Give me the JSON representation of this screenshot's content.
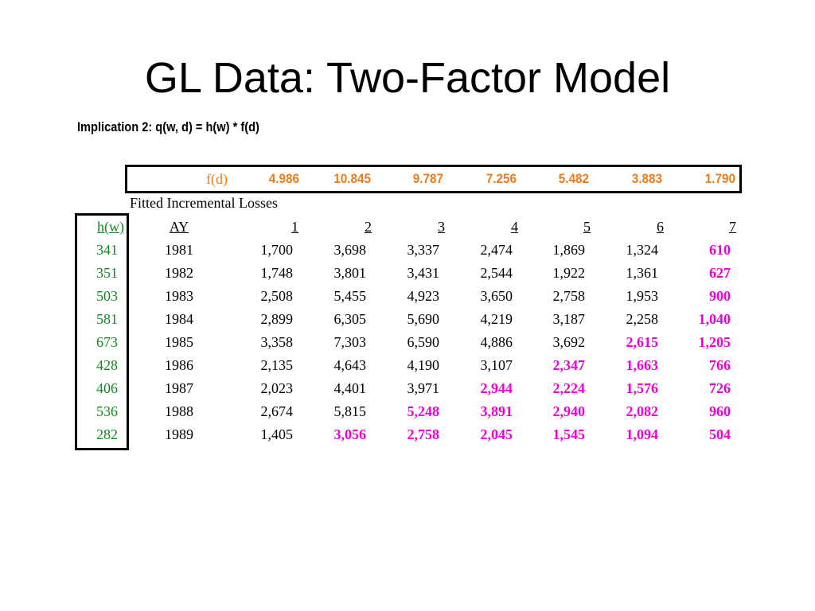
{
  "title": "GL Data: Two-Factor Model",
  "subtitle": "Implication 2:  q(w, d) = h(w) * f(d)",
  "fd": {
    "label": "f(d)",
    "values": [
      "4.986",
      "10.845",
      "9.787",
      "7.256",
      "5.482",
      "3.883",
      "1.790"
    ]
  },
  "caption": "Fitted Incremental Losses",
  "table": {
    "hw_header": "h(w)",
    "ay_header": "AY",
    "dev_headers": [
      "1",
      "2",
      "3",
      "4",
      "5",
      "6",
      "7"
    ],
    "rows": [
      {
        "hw": "341",
        "ay": "1981",
        "cells": [
          "1,700",
          "3,698",
          "3,337",
          "2,474",
          "1,869",
          "1,324",
          "610"
        ],
        "highlight_from": 7
      },
      {
        "hw": "351",
        "ay": "1982",
        "cells": [
          "1,748",
          "3,801",
          "3,431",
          "2,544",
          "1,922",
          "1,361",
          "627"
        ],
        "highlight_from": 7
      },
      {
        "hw": "503",
        "ay": "1983",
        "cells": [
          "2,508",
          "5,455",
          "4,923",
          "3,650",
          "2,758",
          "1,953",
          "900"
        ],
        "highlight_from": 7
      },
      {
        "hw": "581",
        "ay": "1984",
        "cells": [
          "2,899",
          "6,305",
          "5,690",
          "4,219",
          "3,187",
          "2,258",
          "1,040"
        ],
        "highlight_from": 7
      },
      {
        "hw": "673",
        "ay": "1985",
        "cells": [
          "3,358",
          "7,303",
          "6,590",
          "4,886",
          "3,692",
          "2,615",
          "1,205"
        ],
        "highlight_from": 6
      },
      {
        "hw": "428",
        "ay": "1986",
        "cells": [
          "2,135",
          "4,643",
          "4,190",
          "3,107",
          "2,347",
          "1,663",
          "766"
        ],
        "highlight_from": 5
      },
      {
        "hw": "406",
        "ay": "1987",
        "cells": [
          "2,023",
          "4,401",
          "3,971",
          "2,944",
          "2,224",
          "1,576",
          "726"
        ],
        "highlight_from": 4
      },
      {
        "hw": "536",
        "ay": "1988",
        "cells": [
          "2,674",
          "5,815",
          "5,248",
          "3,891",
          "2,940",
          "2,082",
          "960"
        ],
        "highlight_from": 3
      },
      {
        "hw": "282",
        "ay": "1989",
        "cells": [
          "1,405",
          "3,056",
          "2,758",
          "2,045",
          "1,545",
          "1,094",
          "504"
        ],
        "highlight_from": 2
      }
    ]
  },
  "colors": {
    "fd_orange": "#f07a1a",
    "hw_green": "#0f8a1e",
    "projected_magenta": "#f000d8"
  }
}
